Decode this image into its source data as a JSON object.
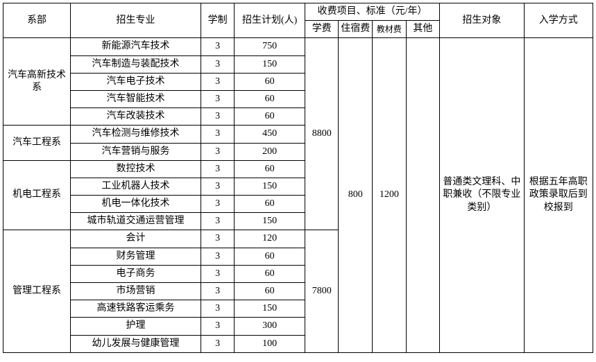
{
  "headers": {
    "dept": "系部",
    "major": "招生专业",
    "years": "学制",
    "plan": "招生计划(人)",
    "fee_group": "收费项目、标准（元/年）",
    "fee_tuition": "学费",
    "fee_dorm": "住宿费",
    "fee_book": "教材费",
    "fee_other": "其他",
    "target": "招生对象",
    "method": "入学方式"
  },
  "depts": {
    "d1": "汽车高新技术系",
    "d2": "汽车工程系",
    "d3": "机电工程系",
    "d4": "管理工程系"
  },
  "majors": {
    "m1": "新能源汽车技术",
    "m2": "汽车制造与装配技术",
    "m3": "汽车电子技术",
    "m4": "汽车智能技术",
    "m5": "汽车改装技术",
    "m6": "汽车检测与维修技术",
    "m7": "汽车营销与服务",
    "m8": "数控技术",
    "m9": "工业机器人技术",
    "m10": "机电一体化技术",
    "m11": "城市轨道交通运营管理",
    "m12": "会计",
    "m13": "财务管理",
    "m14": "电子商务",
    "m15": "市场营销",
    "m16": "高速铁路客运乘务",
    "m17": "护理",
    "m18": "幼儿发展与健康管理"
  },
  "years": "3",
  "plans": {
    "p1": "750",
    "p2": "150",
    "p3": "60",
    "p4": "60",
    "p5": "60",
    "p6": "450",
    "p7": "200",
    "p8": "60",
    "p9": "150",
    "p10": "60",
    "p11": "150",
    "p12": "120",
    "p13": "60",
    "p14": "60",
    "p15": "60",
    "p16": "150",
    "p17": "300",
    "p18": "100"
  },
  "tuition1": "8800",
  "tuition2": "7800",
  "dorm": "800",
  "book": "1200",
  "target_text": "普通类文理科、中职兼收（不限专业类别）",
  "method_text": "根据五年高职政策录取后到校报到",
  "style": {
    "border_color": "#000000",
    "bg_color": "#ffffff",
    "font_size_pt": 10.5,
    "font_family": "SimSun"
  }
}
